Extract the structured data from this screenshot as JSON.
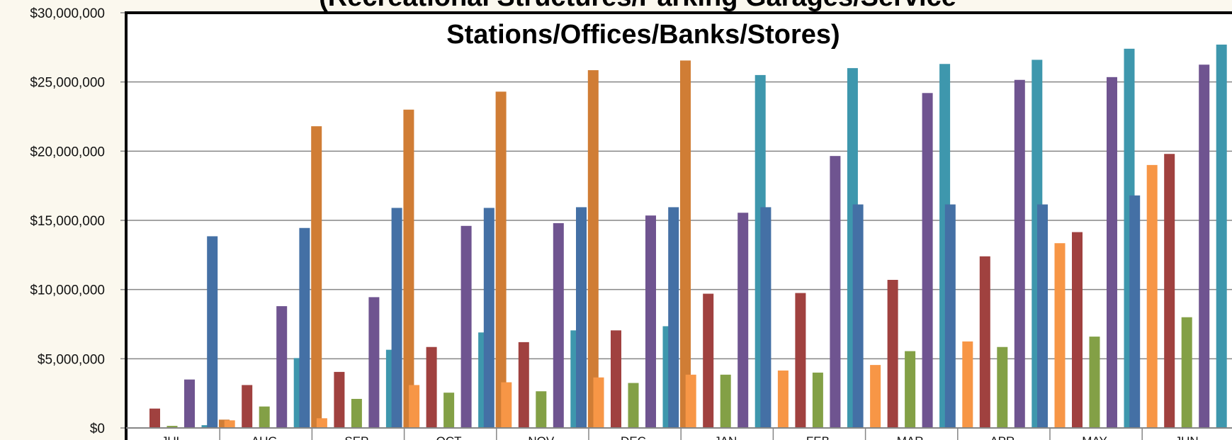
{
  "chart_data": {
    "type": "bar",
    "title_lines": [
      "(Recreational Structures/Parking Garages/Service",
      "Stations/Offices/Banks/Stores)"
    ],
    "ylim": [
      0,
      30000000
    ],
    "yticks": [
      {
        "value": 0,
        "label": "$0"
      },
      {
        "value": 5000000,
        "label": "$5,000,000"
      },
      {
        "value": 10000000,
        "label": "$10,000,000"
      },
      {
        "value": 15000000,
        "label": "$15,000,000"
      },
      {
        "value": 20000000,
        "label": "$20,000,000"
      },
      {
        "value": 25000000,
        "label": "$25,000,000"
      },
      {
        "value": 30000000,
        "label": "$30,000,000"
      }
    ],
    "grid": true,
    "categories": [
      "JUL",
      "AUG",
      "SEP",
      "OCT",
      "NOV",
      "DEC",
      "JAN",
      "FEB",
      "MAR",
      "APR",
      "MAY",
      "JUN"
    ],
    "series": [
      {
        "color": "#4470A5",
        "values": [
          null,
          13850000,
          14450000,
          15900000,
          15900000,
          15950000,
          15950000,
          15950000,
          16150000,
          16150000,
          16150000,
          16800000
        ]
      },
      {
        "color": "#F79646",
        "values": [
          50000,
          550000,
          700000,
          3100000,
          3300000,
          3650000,
          3850000,
          4150000,
          4550000,
          6250000,
          13350000,
          19000000
        ]
      },
      {
        "color": "#A0413F",
        "values": [
          1400000,
          3100000,
          4050000,
          5850000,
          6200000,
          7050000,
          9700000,
          9750000,
          10700000,
          12400000,
          14150000,
          19800000
        ]
      },
      {
        "color": "#83A046",
        "values": [
          150000,
          1550000,
          2100000,
          2550000,
          2650000,
          3250000,
          3850000,
          4000000,
          5550000,
          5850000,
          6600000,
          8000000
        ]
      },
      {
        "color": "#6F5490",
        "values": [
          3500000,
          8800000,
          9450000,
          14600000,
          14800000,
          15350000,
          15550000,
          19650000,
          24200000,
          25150000,
          25350000,
          26250000
        ]
      },
      {
        "color": "#3E97AD",
        "values": [
          200000,
          5050000,
          5650000,
          6900000,
          7050000,
          7350000,
          25500000,
          26000000,
          26300000,
          26600000,
          27400000,
          27700000
        ]
      },
      {
        "color": "#D07D35",
        "values": [
          600000,
          21800000,
          23000000,
          24300000,
          25850000,
          26550000,
          null,
          null,
          null,
          null,
          null,
          null
        ]
      }
    ]
  }
}
